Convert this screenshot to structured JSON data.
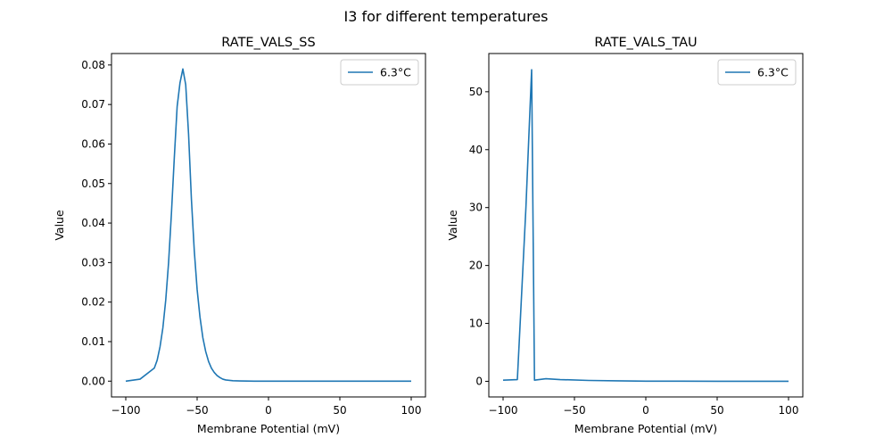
{
  "figure": {
    "suptitle": "I3 for different temperatures"
  },
  "colors": {
    "series": "#1f77b4",
    "axes": "#000000",
    "legend_border": "#cccccc"
  },
  "chart_data": [
    {
      "type": "line",
      "title": "RATE_VALS_SS",
      "xlabel": "Membrane Potential (mV)",
      "ylabel": "Value",
      "xlim": [
        -110,
        110
      ],
      "ylim": [
        -0.004,
        0.0829
      ],
      "xticks": [
        -100,
        -50,
        0,
        50,
        100
      ],
      "xtick_labels": [
        "−100",
        "−50",
        "0",
        "50",
        "100"
      ],
      "yticks": [
        0,
        0.01,
        0.02,
        0.03,
        0.04,
        0.05,
        0.06,
        0.07,
        0.08
      ],
      "ytick_labels": [
        "0.00",
        "0.01",
        "0.02",
        "0.03",
        "0.04",
        "0.05",
        "0.06",
        "0.07",
        "0.08"
      ],
      "legend": {
        "location": "upper right"
      },
      "series": [
        {
          "name": "6.3°C",
          "x": [
            -100,
            -90,
            -80,
            -78,
            -76,
            -74,
            -72,
            -70,
            -68,
            -66,
            -64,
            -62,
            -60,
            -58,
            -56,
            -54,
            -52,
            -50,
            -48,
            -46,
            -44,
            -42,
            -40,
            -38,
            -36,
            -34,
            -32,
            -30,
            -25,
            -20,
            -10,
            0,
            10,
            20,
            40,
            60,
            80,
            100
          ],
          "y": [
            0.0,
            0.0005,
            0.0033,
            0.0053,
            0.0087,
            0.0135,
            0.0205,
            0.03,
            0.0425,
            0.0565,
            0.0695,
            0.0755,
            0.079,
            0.075,
            0.0625,
            0.046,
            0.033,
            0.0232,
            0.0162,
            0.011,
            0.0075,
            0.005,
            0.0033,
            0.0022,
            0.0014,
            0.0009,
            0.0005,
            0.0003,
            0.0001,
            5e-05,
            0.0,
            0.0,
            0.0,
            0.0,
            0.0,
            0.0,
            0.0,
            0.0
          ]
        }
      ]
    },
    {
      "type": "line",
      "title": "RATE_VALS_TAU",
      "xlabel": "Membrane Potential (mV)",
      "ylabel": "Value",
      "xlim": [
        -110,
        110
      ],
      "ylim": [
        -2.7,
        56.6
      ],
      "xticks": [
        -100,
        -50,
        0,
        50,
        100
      ],
      "xtick_labels": [
        "−100",
        "−50",
        "0",
        "50",
        "100"
      ],
      "yticks": [
        0,
        10,
        20,
        30,
        40,
        50
      ],
      "ytick_labels": [
        "0",
        "10",
        "20",
        "30",
        "40",
        "50"
      ],
      "legend": {
        "location": "upper right"
      },
      "series": [
        {
          "name": "6.3°C",
          "x": [
            -100,
            -90,
            -84,
            -82,
            -80,
            -78,
            -70,
            -60,
            -40,
            -20,
            0,
            20,
            50,
            100
          ],
          "y": [
            0.2,
            0.3,
            30.0,
            42.0,
            53.8,
            0.2,
            0.45,
            0.3,
            0.15,
            0.08,
            0.03,
            0.02,
            0.01,
            0.0
          ]
        }
      ]
    }
  ]
}
